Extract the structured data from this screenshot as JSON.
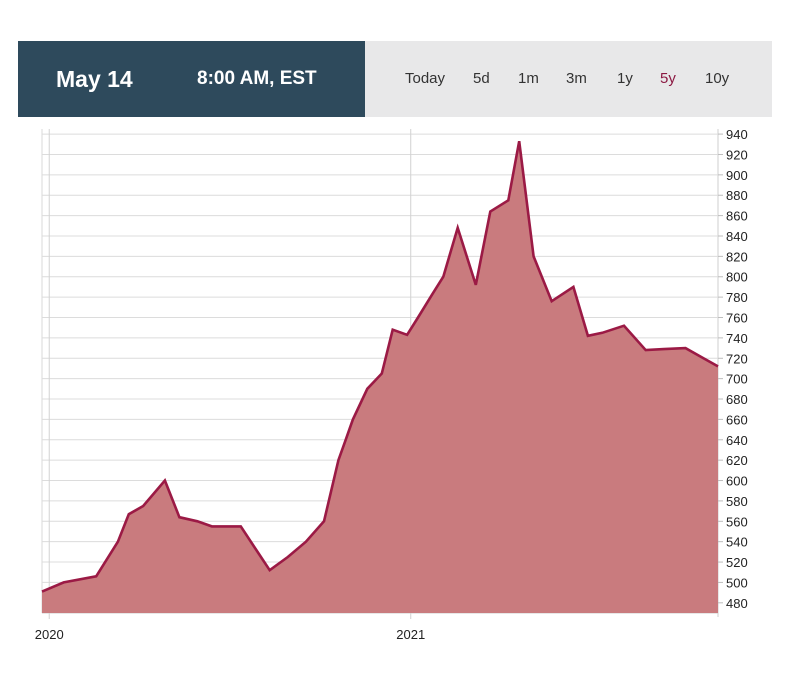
{
  "header": {
    "date": "May 14",
    "time": "8:00 AM, EST",
    "ranges": [
      {
        "label": "Today",
        "active": false
      },
      {
        "label": "5d",
        "active": false
      },
      {
        "label": "1m",
        "active": false
      },
      {
        "label": "3m",
        "active": false
      },
      {
        "label": "1y",
        "active": false
      },
      {
        "label": "5y",
        "active": true
      },
      {
        "label": "10y",
        "active": false
      }
    ]
  },
  "colors": {
    "header_dark": "#2e4a5c",
    "header_light": "#e8e8e9",
    "line": "#9b1a45",
    "fill": "#c97b7e",
    "active_range": "#8c1a43"
  },
  "chart_data": {
    "type": "area",
    "ylim": [
      470,
      945
    ],
    "y_ticks": [
      480,
      500,
      520,
      540,
      560,
      580,
      600,
      620,
      640,
      660,
      680,
      700,
      720,
      740,
      760,
      780,
      800,
      820,
      840,
      860,
      880,
      900,
      920,
      940
    ],
    "x_ticks": [
      "2020",
      "2021"
    ],
    "x_tick_positions": [
      2020.0,
      2021.0
    ],
    "xlim": [
      2019.98,
      2021.85
    ],
    "grid": true,
    "series": [
      {
        "x": [
          2019.98,
          2020.04,
          2020.13,
          2020.19,
          2020.22,
          2020.26,
          2020.32,
          2020.36,
          2020.41,
          2020.45,
          2020.53,
          2020.58,
          2020.61,
          2020.66,
          2020.71,
          2020.76,
          2020.8,
          2020.82,
          2020.84,
          2020.88,
          2020.92,
          2020.95,
          2020.99,
          2021.02,
          2021.06,
          2021.09,
          2021.13,
          2021.18,
          2021.22,
          2021.27,
          2021.3,
          2021.34,
          2021.39,
          2021.45,
          2021.49,
          2021.53,
          2021.59,
          2021.65,
          2021.7,
          2021.76,
          2021.81,
          2021.85
        ],
        "values": [
          491,
          500,
          506,
          540,
          567,
          575,
          600,
          564,
          560,
          555,
          555,
          528,
          512,
          525,
          540,
          560,
          620,
          640,
          660,
          690,
          705,
          748,
          743,
          760,
          783,
          800,
          848,
          792,
          864,
          875,
          933,
          820,
          776,
          790,
          742,
          745,
          752,
          728,
          729,
          730,
          720,
          712
        ]
      }
    ]
  }
}
